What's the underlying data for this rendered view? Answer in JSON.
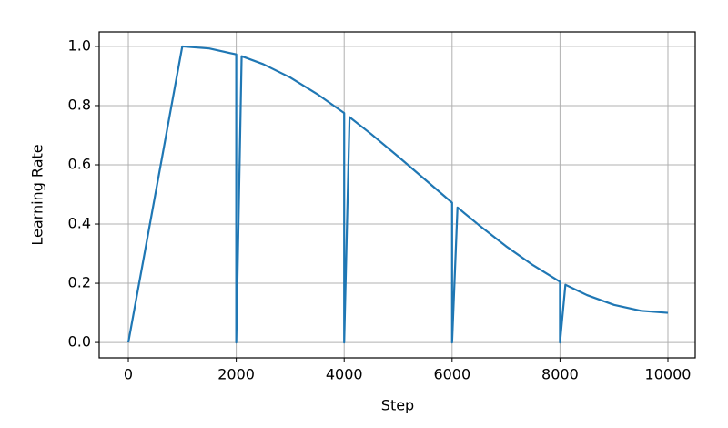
{
  "chart_data": {
    "type": "line",
    "xlabel": "Step",
    "ylabel": "Learning Rate",
    "x": [
      0,
      1000,
      1500,
      2000,
      2000,
      2100,
      2500,
      3000,
      3500,
      4000,
      4000,
      4100,
      4500,
      5000,
      5500,
      6000,
      6000,
      6100,
      6500,
      7000,
      7500,
      8000,
      8000,
      8100,
      8500,
      9000,
      9500,
      10000
    ],
    "series": [
      {
        "name": "Learning Rate",
        "color": "#1f77b4",
        "values": [
          0,
          1.0,
          0.993,
          0.973,
          0,
          0.967,
          0.94,
          0.895,
          0.839,
          0.775,
          0,
          0.761,
          0.704,
          0.628,
          0.55,
          0.472,
          0,
          0.456,
          0.396,
          0.325,
          0.261,
          0.205,
          0,
          0.195,
          0.16,
          0.127,
          0.107,
          0.1
        ]
      }
    ],
    "xlim": [
      -540,
      10506
    ],
    "ylim": [
      -0.052,
      1.049
    ],
    "xticks": [
      0,
      2000,
      4000,
      6000,
      8000,
      10000
    ],
    "yticks": [
      {
        "value": 0,
        "label": "0.0"
      },
      {
        "value": 0.2,
        "label": "0.2"
      },
      {
        "value": 0.4,
        "label": "0.4"
      },
      {
        "value": 0.6,
        "label": "0.6"
      },
      {
        "value": 0.8,
        "label": "0.8"
      },
      {
        "value": 1.0,
        "label": "1.0"
      }
    ],
    "grid": true
  }
}
